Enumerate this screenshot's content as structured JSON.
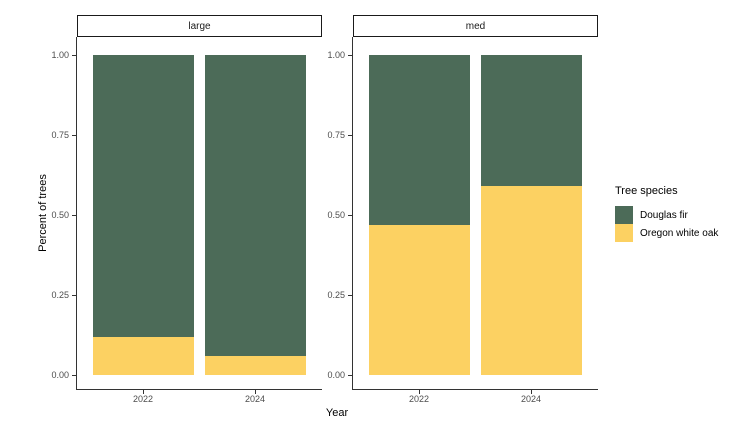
{
  "chart_data": {
    "type": "bar",
    "stacked": true,
    "title": "",
    "xlabel": "Year",
    "ylabel": "Percent of trees",
    "ylim": [
      0,
      1
    ],
    "grid": false,
    "background": "#ffffff",
    "categories": [
      "2022",
      "2024"
    ],
    "y_ticks": [
      {
        "value": 0.0,
        "label": "0.00"
      },
      {
        "value": 0.25,
        "label": "0.25"
      },
      {
        "value": 0.5,
        "label": "0.50"
      },
      {
        "value": 0.75,
        "label": "0.75"
      },
      {
        "value": 1.0,
        "label": "1.00"
      }
    ],
    "facets": [
      {
        "label": "large",
        "series": [
          {
            "name": "Douglas fir",
            "values": [
              0.88,
              0.94
            ]
          },
          {
            "name": "Oregon white oak",
            "values": [
              0.12,
              0.06
            ]
          }
        ]
      },
      {
        "label": "med",
        "series": [
          {
            "name": "Douglas fir",
            "values": [
              0.53,
              0.41
            ]
          },
          {
            "name": "Oregon white oak",
            "values": [
              0.47,
              0.59
            ]
          }
        ]
      }
    ],
    "colors": {
      "Douglas fir": "#4c6b58",
      "Oregon white oak": "#fcd162"
    },
    "legend": {
      "title": "Tree species",
      "position": "right",
      "entries": [
        {
          "label": "Douglas fir",
          "color": "#4c6b58"
        },
        {
          "label": "Oregon white oak",
          "color": "#fcd162"
        }
      ]
    }
  }
}
